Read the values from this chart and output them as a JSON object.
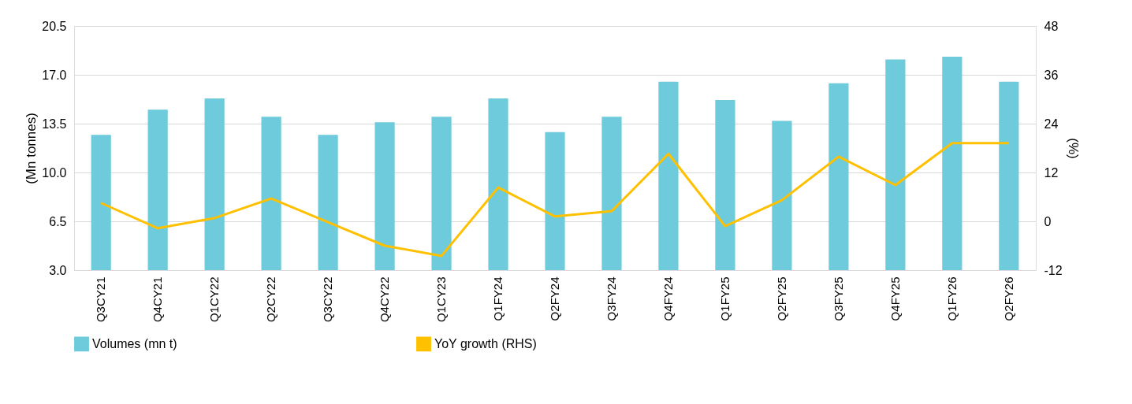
{
  "chart_data": {
    "type": "bar",
    "ylabel": "(Mn tonnes)",
    "y2label": "(%)",
    "categories": [
      "Q3CY21",
      "Q4CY21",
      "Q1CY22",
      "Q2CY22",
      "Q3CY22",
      "Q4CY22",
      "Q1CY23",
      "Q1FY24",
      "Q2FY24",
      "Q3FY24",
      "Q4FY24",
      "Q1FY25",
      "Q2FY25",
      "Q3FY25",
      "Q4FY25",
      "Q1FY26",
      "Q2FY26"
    ],
    "series": [
      {
        "name": "Volumes (mn t)",
        "color": "#6dcbdc",
        "values": [
          12.7,
          14.5,
          15.3,
          14.0,
          12.7,
          13.6,
          14.0,
          15.3,
          12.9,
          14.0,
          16.5,
          15.2,
          13.7,
          16.4,
          18.1,
          18.3,
          16.5
        ]
      },
      {
        "name": "YoY growth (RHS)",
        "color": "#ffc000",
        "type": "line",
        "axis": "y2",
        "values": [
          4.5,
          -1.7,
          0.8,
          5.6,
          -0.2,
          -6.0,
          -8.5,
          8.3,
          1.2,
          2.5,
          16.6,
          -1.2,
          5.2,
          15.9,
          8.9,
          19.2,
          19.2
        ]
      }
    ],
    "ylim": [
      3.0,
      20.5
    ],
    "yticks": [
      {
        "value": 3,
        "label": "3.0"
      },
      {
        "value": 6.5,
        "label": "6.5"
      },
      {
        "value": 10,
        "label": "10.0"
      },
      {
        "value": 13.5,
        "label": "13.5"
      },
      {
        "value": 17,
        "label": "17.0"
      },
      {
        "value": 20.5,
        "label": "20.5"
      }
    ],
    "y2lim": [
      -12,
      48
    ],
    "y2ticks": [
      -12,
      0,
      12,
      24,
      36,
      48
    ],
    "grid": "y",
    "legend": "bottom",
    "marker": "none",
    "line_style": "solid"
  }
}
